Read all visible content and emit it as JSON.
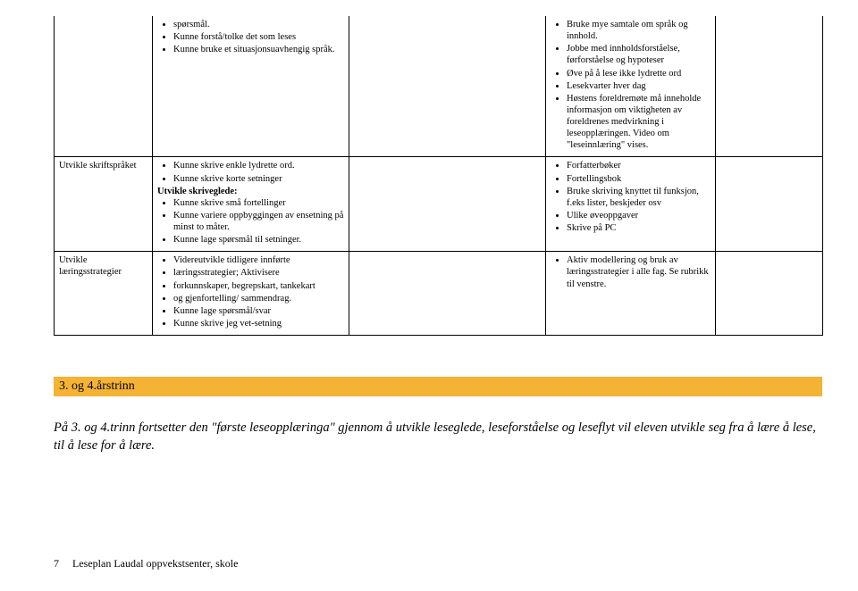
{
  "table": {
    "rows": [
      {
        "label": "",
        "col1": {
          "bullets": [
            "spørsmål.",
            "Kunne forstå/tolke det som leses",
            "Kunne bruke et situasjonsuavhengig språk."
          ]
        },
        "col3": {
          "bullets": [
            "Bruke mye samtale om språk og innhold.",
            "Jobbe med innholdsforståelse, førforståelse og hypoteser",
            "Øve på å lese ikke lydrette ord",
            "Lesekvarter hver dag",
            "Høstens foreldremøte må inneholde informasjon om viktigheten av foreldrenes medvirkning i leseopplæringen. Video om \"leseinnlæring\" vises."
          ]
        }
      },
      {
        "label": "Utvikle skriftspråket",
        "col1": {
          "bullets_pre": [
            "Kunne skrive enkle lydrette ord.",
            "Kunne skrive korte setninger"
          ],
          "subhead": "Utvikle skriveglede:",
          "bullets_post": [
            "Kunne skrive små fortellinger",
            "Kunne variere oppbyggingen av ensetning på minst to måter.",
            "Kunne lage spørsmål til setninger."
          ]
        },
        "col3": {
          "bullets": [
            "Forfatterbøker",
            "Fortellingsbok",
            "Bruke skriving knyttet til funksjon, f.eks lister, beskjeder osv",
            "Ulike øveoppgaver",
            "Skrive på PC"
          ]
        }
      },
      {
        "label": "Utvikle læringsstrategier",
        "col1": {
          "bullets": [
            "Videreutvikle tidligere innførte",
            "læringsstrategier; Aktivisere",
            "forkunnskaper, begrepskart, tankekart",
            "og gjenfortelling/ sammendrag.",
            "Kunne lage spørsmål/svar",
            "Kunne skrive jeg vet-setning"
          ]
        },
        "col3": {
          "bullets": [
            "Aktiv modellering og bruk av læringsstrategier i alle fag. Se rubrikk til venstre."
          ]
        }
      }
    ]
  },
  "section_bar": "3. og 4.årstrinn",
  "section_text": "På 3. og 4.trinn fortsetter den \"første leseopplæringa\" gjennom å utvikle leseglede, leseforståelse og leseflyt vil eleven utvikle seg fra å lære å lese, til å lese for å lære.",
  "footer": {
    "page": "7",
    "title": "Leseplan Laudal oppvekstsenter, skole"
  },
  "colors": {
    "bar_bg": "#f4b334",
    "border": "#000000",
    "text": "#000000",
    "bg": "#ffffff"
  }
}
